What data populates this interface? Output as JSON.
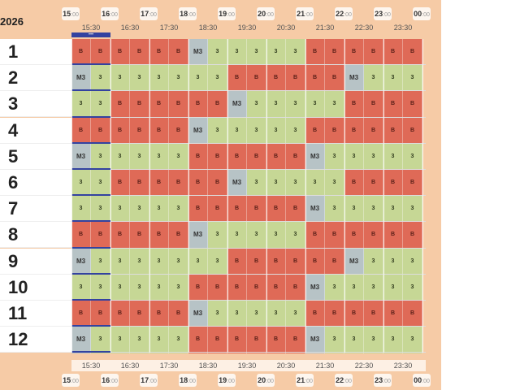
{
  "header": {
    "year_label": "2026",
    "now_marker": "•••",
    "hours": [
      {
        "h": "15",
        "m": ":00"
      },
      {
        "h": "16",
        "m": ":00"
      },
      {
        "h": "17",
        "m": ":00"
      },
      {
        "h": "18",
        "m": ":00"
      },
      {
        "h": "19",
        "m": ":00"
      },
      {
        "h": "20",
        "m": ":00"
      },
      {
        "h": "21",
        "m": ":00"
      },
      {
        "h": "22",
        "m": ":00"
      },
      {
        "h": "23",
        "m": ":00"
      },
      {
        "h": "00",
        "m": ":00"
      }
    ],
    "half_hours": [
      "15:30",
      "16:30",
      "17:30",
      "18:30",
      "19:30",
      "20:30",
      "21:30",
      "22:30",
      "23:30"
    ]
  },
  "rows": [
    {
      "label": "1",
      "cells": [
        "B",
        "B",
        "B",
        "B",
        "B",
        "B",
        "M3",
        "3",
        "3",
        "3",
        "3",
        "3",
        "B",
        "B",
        "B",
        "B",
        "B",
        "B"
      ]
    },
    {
      "label": "2",
      "cells": [
        "M3",
        "3",
        "3",
        "3",
        "3",
        "3",
        "3",
        "3",
        "B",
        "B",
        "B",
        "B",
        "B",
        "B",
        "M3",
        "3",
        "3",
        "3"
      ]
    },
    {
      "label": "3",
      "cells": [
        "3",
        "3",
        "B",
        "B",
        "B",
        "B",
        "B",
        "B",
        "M3",
        "3",
        "3",
        "3",
        "3",
        "3",
        "B",
        "B",
        "B",
        "B"
      ]
    },
    {
      "label": "4",
      "cells": [
        "B",
        "B",
        "B",
        "B",
        "B",
        "B",
        "M3",
        "3",
        "3",
        "3",
        "3",
        "3",
        "B",
        "B",
        "B",
        "B",
        "B",
        "B"
      ]
    },
    {
      "label": "5",
      "cells": [
        "M3",
        "3",
        "3",
        "3",
        "3",
        "3",
        "B",
        "B",
        "B",
        "B",
        "B",
        "B",
        "M3",
        "3",
        "3",
        "3",
        "3",
        "3"
      ]
    },
    {
      "label": "6",
      "cells": [
        "3",
        "3",
        "B",
        "B",
        "B",
        "B",
        "B",
        "B",
        "M3",
        "3",
        "3",
        "3",
        "3",
        "3",
        "B",
        "B",
        "B",
        "B"
      ]
    },
    {
      "label": "7",
      "cells": [
        "3",
        "3",
        "3",
        "3",
        "3",
        "3",
        "B",
        "B",
        "B",
        "B",
        "B",
        "B",
        "M3",
        "3",
        "3",
        "3",
        "3",
        "3"
      ]
    },
    {
      "label": "8",
      "cells": [
        "B",
        "B",
        "B",
        "B",
        "B",
        "B",
        "M3",
        "3",
        "3",
        "3",
        "3",
        "3",
        "B",
        "B",
        "B",
        "B",
        "B",
        "B"
      ]
    },
    {
      "label": "9",
      "cells": [
        "M3",
        "3",
        "3",
        "3",
        "3",
        "3",
        "3",
        "3",
        "B",
        "B",
        "B",
        "B",
        "B",
        "B",
        "M3",
        "3",
        "3",
        "3"
      ]
    },
    {
      "label": "10",
      "cells": [
        "3",
        "3",
        "3",
        "3",
        "3",
        "3",
        "B",
        "B",
        "B",
        "B",
        "B",
        "B",
        "M3",
        "3",
        "3",
        "3",
        "3",
        "3"
      ]
    },
    {
      "label": "11",
      "cells": [
        "B",
        "B",
        "B",
        "B",
        "B",
        "B",
        "M3",
        "3",
        "3",
        "3",
        "3",
        "3",
        "B",
        "B",
        "B",
        "B",
        "B",
        "B"
      ]
    },
    {
      "label": "12",
      "cells": [
        "M3",
        "3",
        "3",
        "3",
        "3",
        "3",
        "B",
        "B",
        "B",
        "B",
        "B",
        "B",
        "M3",
        "3",
        "3",
        "3",
        "3",
        "3"
      ]
    }
  ],
  "colors": {
    "B": "#df6a57",
    "3": "#c6d795",
    "M3": "#b7c3c6",
    "background": "#f6cba6",
    "current_marker": "#3342a0"
  }
}
